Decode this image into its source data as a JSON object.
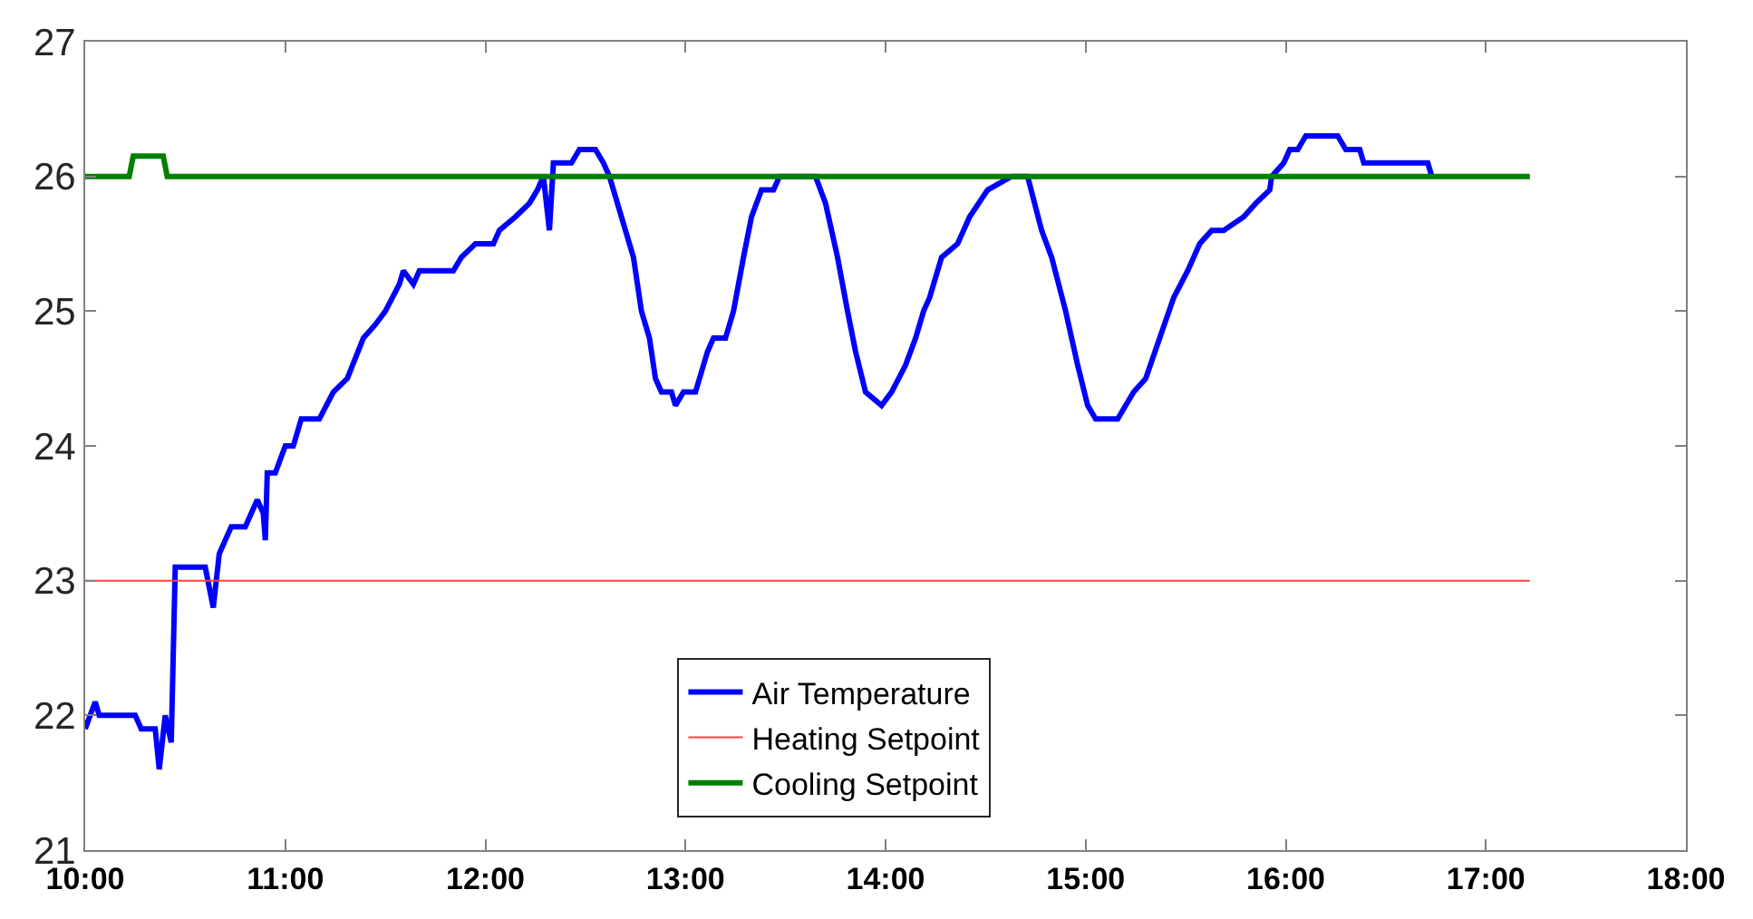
{
  "chart_data": {
    "type": "line",
    "xlim": [
      10,
      18
    ],
    "ylim": [
      21,
      27
    ],
    "xticks": [
      {
        "value": 10,
        "label": "10:00"
      },
      {
        "value": 11,
        "label": "11:00"
      },
      {
        "value": 12,
        "label": "12:00"
      },
      {
        "value": 13,
        "label": "13:00"
      },
      {
        "value": 14,
        "label": "14:00"
      },
      {
        "value": 15,
        "label": "15:00"
      },
      {
        "value": 16,
        "label": "16:00"
      },
      {
        "value": 17,
        "label": "17:00"
      },
      {
        "value": 18,
        "label": "18:00"
      }
    ],
    "yticks": [
      21,
      22,
      23,
      24,
      25,
      26,
      27
    ],
    "legend": "bottom",
    "marker": "none",
    "line_style": "solid",
    "series": [
      {
        "name": "Air Temperature",
        "color": "#0000ff",
        "x": [
          10.0,
          10.05,
          10.07,
          10.25,
          10.28,
          10.35,
          10.37,
          10.4,
          10.43,
          10.45,
          10.6,
          10.64,
          10.67,
          10.7,
          10.73,
          10.8,
          10.86,
          10.89,
          10.9,
          10.91,
          10.95,
          11.0,
          11.04,
          11.08,
          11.17,
          11.24,
          11.31,
          11.39,
          11.45,
          11.5,
          11.57,
          11.59,
          11.64,
          11.67,
          11.84,
          11.88,
          11.95,
          12.04,
          12.07,
          12.15,
          12.22,
          12.26,
          12.29,
          12.32,
          12.34,
          12.43,
          12.47,
          12.55,
          12.59,
          12.62,
          12.7,
          12.74,
          12.78,
          12.82,
          12.85,
          12.88,
          12.93,
          12.95,
          12.99,
          13.05,
          13.11,
          13.14,
          13.2,
          13.24,
          13.29,
          13.33,
          13.38,
          13.44,
          13.47,
          13.54,
          13.65,
          13.7,
          13.76,
          13.81,
          13.85,
          13.9,
          13.98,
          14.03,
          14.1,
          14.15,
          14.19,
          14.22,
          14.28,
          14.36,
          14.42,
          14.51,
          14.63,
          14.71,
          14.78,
          14.83,
          14.9,
          14.96,
          15.01,
          15.05,
          15.16,
          15.24,
          15.3,
          15.37,
          15.44,
          15.51,
          15.57,
          15.63,
          15.69,
          15.79,
          15.85,
          15.92,
          15.93,
          15.99,
          16.02,
          16.06,
          16.1,
          16.26,
          16.3,
          16.37,
          16.39,
          16.71,
          16.73
        ],
        "values": [
          21.9,
          22.1,
          22.0,
          22.0,
          21.9,
          21.9,
          21.6,
          22.0,
          21.8,
          23.1,
          23.1,
          22.8,
          23.2,
          23.3,
          23.4,
          23.4,
          23.6,
          23.5,
          23.3,
          23.8,
          23.8,
          24.0,
          24.0,
          24.2,
          24.2,
          24.4,
          24.5,
          24.8,
          24.9,
          25.0,
          25.2,
          25.3,
          25.2,
          25.3,
          25.3,
          25.4,
          25.5,
          25.5,
          25.6,
          25.7,
          25.8,
          25.9,
          26.0,
          25.6,
          26.1,
          26.1,
          26.2,
          26.2,
          26.1,
          26.0,
          25.6,
          25.4,
          25.0,
          24.8,
          24.5,
          24.4,
          24.4,
          24.3,
          24.4,
          24.4,
          24.7,
          24.8,
          24.8,
          25.0,
          25.4,
          25.7,
          25.9,
          25.9,
          26.0,
          26.0,
          26.0,
          25.8,
          25.4,
          25.0,
          24.7,
          24.4,
          24.3,
          24.4,
          24.6,
          24.8,
          25.0,
          25.1,
          25.4,
          25.5,
          25.7,
          25.9,
          26.0,
          26.0,
          25.6,
          25.4,
          25.0,
          24.6,
          24.3,
          24.2,
          24.2,
          24.4,
          24.5,
          24.8,
          25.1,
          25.3,
          25.5,
          25.6,
          25.6,
          25.7,
          25.8,
          25.9,
          26.0,
          26.1,
          26.2,
          26.2,
          26.3,
          26.3,
          26.2,
          26.2,
          26.1,
          26.1,
          26.0
        ]
      },
      {
        "name": "Heating Setpoint",
        "color": "#ff4040",
        "x": [
          10,
          17.22
        ],
        "values": [
          23,
          23
        ]
      },
      {
        "name": "Cooling Setpoint",
        "color": "#008000",
        "x": [
          10,
          10.22,
          10.24,
          10.39,
          10.41,
          17.22
        ],
        "values": [
          26,
          26,
          26.15,
          26.15,
          26,
          26
        ]
      }
    ]
  }
}
